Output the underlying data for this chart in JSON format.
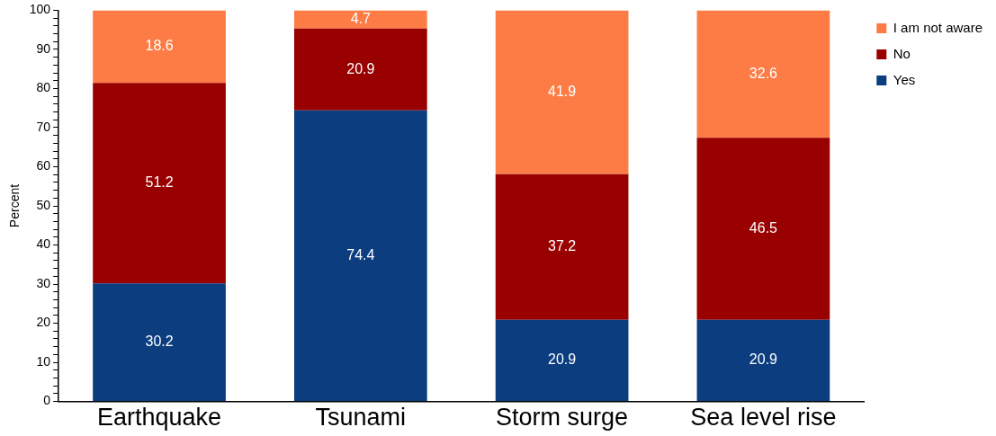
{
  "chart_data": {
    "type": "bar",
    "stacked": true,
    "ylabel": "Percent",
    "categories": [
      "Earthquake",
      "Tsunami",
      "Storm surge",
      "Sea level rise"
    ],
    "series": [
      {
        "name": "Yes",
        "color": "#0b3d7f",
        "values": [
          30.2,
          74.4,
          20.9,
          20.9
        ]
      },
      {
        "name": "No",
        "color": "#990000",
        "values": [
          51.2,
          20.9,
          37.2,
          46.5
        ]
      },
      {
        "name": "I am not aware",
        "color": "#fd7c45",
        "values": [
          18.6,
          4.7,
          41.9,
          32.6
        ]
      }
    ],
    "data_labels": true,
    "ylim": [
      0,
      100
    ],
    "yticks": [
      0,
      {
        "value": 2,
        "label": null
      },
      {
        "value": 4,
        "label": null
      },
      {
        "value": 6,
        "label": null
      },
      {
        "value": 8,
        "label": null
      },
      10,
      {
        "value": 12,
        "label": null
      },
      {
        "value": 14,
        "label": null
      },
      {
        "value": 16,
        "label": null
      },
      {
        "value": 18,
        "label": null
      },
      20,
      {
        "value": 22,
        "label": null
      },
      {
        "value": 24,
        "label": null
      },
      {
        "value": 26,
        "label": null
      },
      {
        "value": 28,
        "label": null
      },
      30,
      {
        "value": 32,
        "label": null
      },
      {
        "value": 34,
        "label": null
      },
      {
        "value": 36,
        "label": null
      },
      {
        "value": 38,
        "label": null
      },
      40,
      {
        "value": 42,
        "label": null
      },
      {
        "value": 44,
        "label": null
      },
      {
        "value": 46,
        "label": null
      },
      {
        "value": 48,
        "label": null
      },
      50,
      {
        "value": 52,
        "label": null
      },
      {
        "value": 54,
        "label": null
      },
      {
        "value": 56,
        "label": null
      },
      {
        "value": 58,
        "label": null
      },
      60,
      {
        "value": 62,
        "label": null
      },
      {
        "value": 64,
        "label": null
      },
      {
        "value": 66,
        "label": null
      },
      {
        "value": 68,
        "label": null
      },
      70,
      {
        "value": 72,
        "label": null
      },
      {
        "value": 74,
        "label": null
      },
      {
        "value": 76,
        "label": null
      },
      {
        "value": 78,
        "label": null
      },
      80,
      {
        "value": 82,
        "label": null
      },
      {
        "value": 84,
        "label": null
      },
      {
        "value": 86,
        "label": null
      },
      {
        "value": 88,
        "label": null
      },
      90,
      {
        "value": 92,
        "label": null
      },
      {
        "value": 94,
        "label": null
      },
      {
        "value": 96,
        "label": null
      },
      {
        "value": 98,
        "label": null
      },
      100
    ],
    "grid": false,
    "legend": "top right"
  }
}
